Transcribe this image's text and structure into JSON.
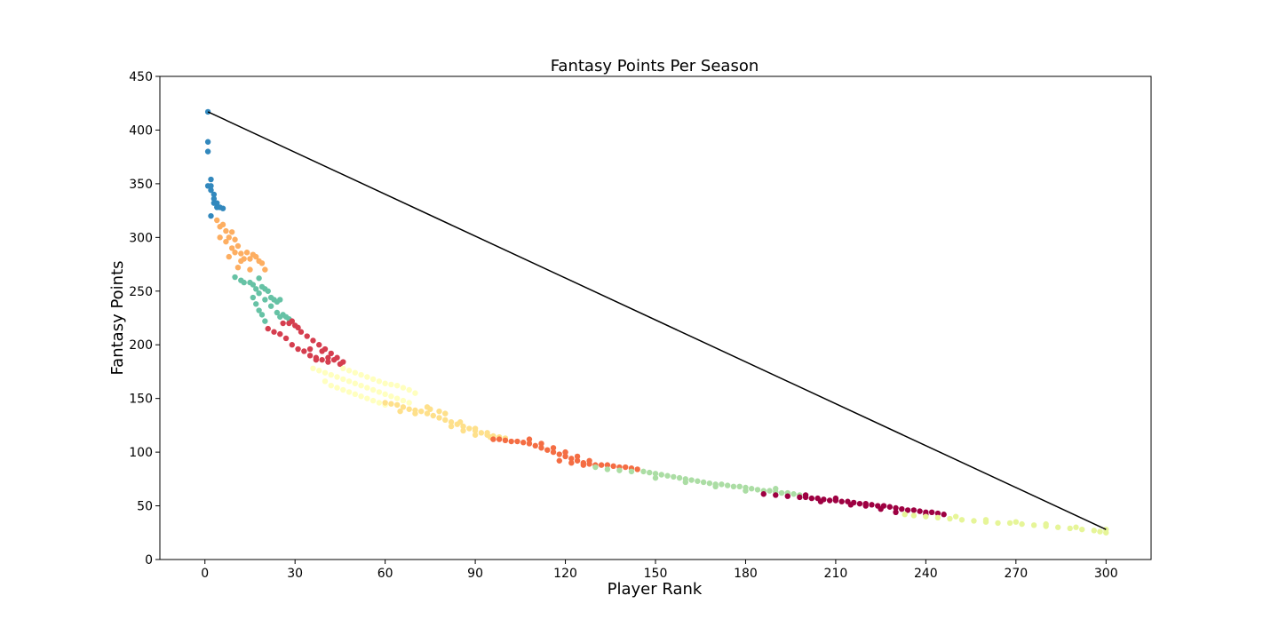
{
  "chart_data": {
    "type": "scatter",
    "title": "Fantasy Points Per Season",
    "xlabel": "Player Rank",
    "ylabel": "Fantasy Points",
    "xlim": [
      -15,
      315
    ],
    "ylim": [
      0,
      450
    ],
    "x_ticks": [
      0,
      30,
      60,
      90,
      120,
      150,
      180,
      210,
      240,
      270,
      300
    ],
    "y_ticks": [
      0,
      50,
      100,
      150,
      200,
      250,
      300,
      350,
      400,
      450
    ],
    "grid": false,
    "legend": "none",
    "colormap": "Spectral",
    "clusters": [
      {
        "color": "#3288bd",
        "points": [
          [
            1,
            417
          ],
          [
            1,
            389
          ],
          [
            1,
            380
          ],
          [
            1,
            348
          ],
          [
            2,
            354
          ],
          [
            2,
            348
          ],
          [
            2,
            344
          ],
          [
            2,
            320
          ],
          [
            3,
            340
          ],
          [
            3,
            336
          ],
          [
            3,
            332
          ],
          [
            4,
            332
          ],
          [
            4,
            328
          ],
          [
            5,
            328
          ],
          [
            6,
            327
          ]
        ]
      },
      {
        "color": "#fdae61",
        "points": [
          [
            4,
            316
          ],
          [
            5,
            310
          ],
          [
            5,
            300
          ],
          [
            6,
            312
          ],
          [
            7,
            306
          ],
          [
            7,
            296
          ],
          [
            8,
            300
          ],
          [
            8,
            282
          ],
          [
            9,
            305
          ],
          [
            9,
            290
          ],
          [
            10,
            298
          ],
          [
            10,
            286
          ],
          [
            11,
            292
          ],
          [
            11,
            272
          ],
          [
            12,
            285
          ],
          [
            12,
            278
          ],
          [
            13,
            280
          ],
          [
            14,
            286
          ],
          [
            15,
            280
          ],
          [
            15,
            270
          ],
          [
            16,
            284
          ],
          [
            17,
            282
          ],
          [
            18,
            278
          ],
          [
            19,
            276
          ],
          [
            20,
            270
          ]
        ]
      },
      {
        "color": "#66c2a5",
        "points": [
          [
            10,
            263
          ],
          [
            12,
            260
          ],
          [
            13,
            258
          ],
          [
            15,
            258
          ],
          [
            16,
            256
          ],
          [
            17,
            252
          ],
          [
            18,
            262
          ],
          [
            18,
            248
          ],
          [
            19,
            254
          ],
          [
            20,
            252
          ],
          [
            20,
            242
          ],
          [
            21,
            250
          ],
          [
            22,
            244
          ],
          [
            22,
            236
          ],
          [
            23,
            242
          ],
          [
            24,
            240
          ],
          [
            24,
            230
          ],
          [
            25,
            242
          ],
          [
            25,
            226
          ],
          [
            26,
            228
          ],
          [
            27,
            226
          ],
          [
            28,
            224
          ],
          [
            16,
            244
          ],
          [
            17,
            238
          ],
          [
            18,
            232
          ],
          [
            19,
            228
          ],
          [
            20,
            222
          ]
        ]
      },
      {
        "color": "#d53e4f",
        "points": [
          [
            21,
            215
          ],
          [
            23,
            212
          ],
          [
            25,
            210
          ],
          [
            27,
            206
          ],
          [
            29,
            200
          ],
          [
            31,
            196
          ],
          [
            33,
            194
          ],
          [
            35,
            190
          ],
          [
            37,
            188
          ],
          [
            39,
            186
          ],
          [
            41,
            184
          ],
          [
            26,
            220
          ],
          [
            28,
            220
          ],
          [
            30,
            218
          ],
          [
            32,
            212
          ],
          [
            34,
            208
          ],
          [
            36,
            204
          ],
          [
            38,
            200
          ],
          [
            40,
            196
          ],
          [
            42,
            192
          ],
          [
            44,
            188
          ],
          [
            46,
            184
          ],
          [
            29,
            222
          ],
          [
            31,
            216
          ],
          [
            35,
            196
          ],
          [
            37,
            186
          ],
          [
            39,
            194
          ],
          [
            41,
            188
          ],
          [
            43,
            186
          ],
          [
            45,
            182
          ]
        ]
      },
      {
        "color": "#ffffbf",
        "points": [
          [
            36,
            178
          ],
          [
            38,
            176
          ],
          [
            40,
            174
          ],
          [
            42,
            172
          ],
          [
            44,
            170
          ],
          [
            46,
            168
          ],
          [
            48,
            166
          ],
          [
            50,
            164
          ],
          [
            52,
            162
          ],
          [
            54,
            160
          ],
          [
            56,
            158
          ],
          [
            58,
            156
          ],
          [
            60,
            154
          ],
          [
            62,
            152
          ],
          [
            64,
            150
          ],
          [
            66,
            148
          ],
          [
            68,
            146
          ],
          [
            40,
            166
          ],
          [
            42,
            162
          ],
          [
            44,
            160
          ],
          [
            46,
            158
          ],
          [
            48,
            156
          ],
          [
            50,
            154
          ],
          [
            52,
            152
          ],
          [
            54,
            150
          ],
          [
            56,
            148
          ],
          [
            58,
            146
          ],
          [
            60,
            144
          ],
          [
            46,
            178
          ],
          [
            48,
            176
          ],
          [
            50,
            174
          ],
          [
            52,
            172
          ],
          [
            54,
            170
          ],
          [
            56,
            168
          ],
          [
            58,
            166
          ],
          [
            60,
            164
          ],
          [
            62,
            163
          ],
          [
            64,
            162
          ],
          [
            66,
            160
          ],
          [
            68,
            158
          ],
          [
            70,
            155
          ]
        ]
      },
      {
        "color": "#fee08b",
        "points": [
          [
            60,
            146
          ],
          [
            62,
            145
          ],
          [
            64,
            144
          ],
          [
            66,
            142
          ],
          [
            68,
            140
          ],
          [
            70,
            139
          ],
          [
            72,
            138
          ],
          [
            74,
            136
          ],
          [
            76,
            134
          ],
          [
            78,
            132
          ],
          [
            80,
            130
          ],
          [
            82,
            128
          ],
          [
            84,
            126
          ],
          [
            86,
            124
          ],
          [
            88,
            122
          ],
          [
            90,
            120
          ],
          [
            92,
            118
          ],
          [
            94,
            116
          ],
          [
            96,
            115
          ],
          [
            98,
            114
          ],
          [
            100,
            113
          ],
          [
            65,
            138
          ],
          [
            70,
            136
          ],
          [
            75,
            140
          ],
          [
            80,
            136
          ],
          [
            85,
            128
          ],
          [
            90,
            116
          ],
          [
            95,
            114
          ],
          [
            74,
            142
          ],
          [
            78,
            138
          ],
          [
            82,
            124
          ],
          [
            86,
            120
          ],
          [
            90,
            122
          ],
          [
            94,
            118
          ]
        ]
      },
      {
        "color": "#f46d43",
        "points": [
          [
            96,
            112
          ],
          [
            98,
            112
          ],
          [
            100,
            111
          ],
          [
            102,
            110
          ],
          [
            104,
            110
          ],
          [
            106,
            109
          ],
          [
            108,
            108
          ],
          [
            110,
            106
          ],
          [
            112,
            104
          ],
          [
            114,
            102
          ],
          [
            116,
            100
          ],
          [
            118,
            98
          ],
          [
            120,
            96
          ],
          [
            122,
            94
          ],
          [
            124,
            92
          ],
          [
            126,
            90
          ],
          [
            128,
            89
          ],
          [
            130,
            88
          ],
          [
            132,
            88
          ],
          [
            134,
            88
          ],
          [
            136,
            87
          ],
          [
            138,
            86
          ],
          [
            140,
            86
          ],
          [
            142,
            85
          ],
          [
            144,
            84
          ],
          [
            108,
            112
          ],
          [
            112,
            108
          ],
          [
            116,
            104
          ],
          [
            120,
            100
          ],
          [
            124,
            96
          ],
          [
            128,
            92
          ],
          [
            118,
            92
          ],
          [
            122,
            90
          ],
          [
            126,
            88
          ]
        ]
      },
      {
        "color": "#abdda4",
        "points": [
          [
            130,
            86
          ],
          [
            134,
            84
          ],
          [
            138,
            83
          ],
          [
            142,
            82
          ],
          [
            146,
            82
          ],
          [
            148,
            81
          ],
          [
            150,
            80
          ],
          [
            152,
            79
          ],
          [
            154,
            78
          ],
          [
            156,
            77
          ],
          [
            158,
            76
          ],
          [
            160,
            75
          ],
          [
            162,
            74
          ],
          [
            164,
            73
          ],
          [
            166,
            72
          ],
          [
            168,
            71
          ],
          [
            170,
            70
          ],
          [
            172,
            70
          ],
          [
            174,
            69
          ],
          [
            176,
            68
          ],
          [
            178,
            68
          ],
          [
            180,
            67
          ],
          [
            182,
            66
          ],
          [
            184,
            65
          ],
          [
            186,
            64
          ],
          [
            188,
            64
          ],
          [
            190,
            63
          ],
          [
            192,
            62
          ],
          [
            194,
            62
          ],
          [
            196,
            61
          ],
          [
            198,
            60
          ],
          [
            150,
            76
          ],
          [
            160,
            72
          ],
          [
            170,
            68
          ],
          [
            180,
            64
          ],
          [
            190,
            66
          ]
        ]
      },
      {
        "color": "#9e0142",
        "points": [
          [
            186,
            61
          ],
          [
            190,
            60
          ],
          [
            194,
            59
          ],
          [
            198,
            58
          ],
          [
            200,
            58
          ],
          [
            202,
            57
          ],
          [
            204,
            57
          ],
          [
            206,
            56
          ],
          [
            208,
            55
          ],
          [
            210,
            55
          ],
          [
            212,
            54
          ],
          [
            214,
            54
          ],
          [
            216,
            53
          ],
          [
            218,
            52
          ],
          [
            220,
            52
          ],
          [
            222,
            51
          ],
          [
            224,
            50
          ],
          [
            226,
            50
          ],
          [
            228,
            49
          ],
          [
            230,
            48
          ],
          [
            232,
            47
          ],
          [
            234,
            46
          ],
          [
            236,
            46
          ],
          [
            238,
            45
          ],
          [
            240,
            44
          ],
          [
            242,
            44
          ],
          [
            244,
            43
          ],
          [
            246,
            42
          ],
          [
            200,
            60
          ],
          [
            210,
            57
          ],
          [
            220,
            50
          ],
          [
            230,
            44
          ],
          [
            240,
            42
          ],
          [
            205,
            54
          ],
          [
            215,
            51
          ],
          [
            225,
            47
          ]
        ]
      },
      {
        "color": "#e6f598",
        "points": [
          [
            233,
            42
          ],
          [
            236,
            41
          ],
          [
            240,
            40
          ],
          [
            244,
            39
          ],
          [
            248,
            38
          ],
          [
            252,
            37
          ],
          [
            256,
            36
          ],
          [
            260,
            35
          ],
          [
            264,
            34
          ],
          [
            268,
            34
          ],
          [
            272,
            33
          ],
          [
            276,
            32
          ],
          [
            280,
            31
          ],
          [
            284,
            30
          ],
          [
            288,
            29
          ],
          [
            292,
            28
          ],
          [
            296,
            27
          ],
          [
            298,
            26
          ],
          [
            300,
            25
          ],
          [
            250,
            40
          ],
          [
            260,
            37
          ],
          [
            270,
            35
          ],
          [
            280,
            33
          ],
          [
            290,
            30
          ],
          [
            300,
            28
          ]
        ]
      }
    ],
    "reference_line": {
      "color": "#000000",
      "points": [
        [
          1,
          417
        ],
        [
          300,
          28
        ]
      ]
    }
  }
}
